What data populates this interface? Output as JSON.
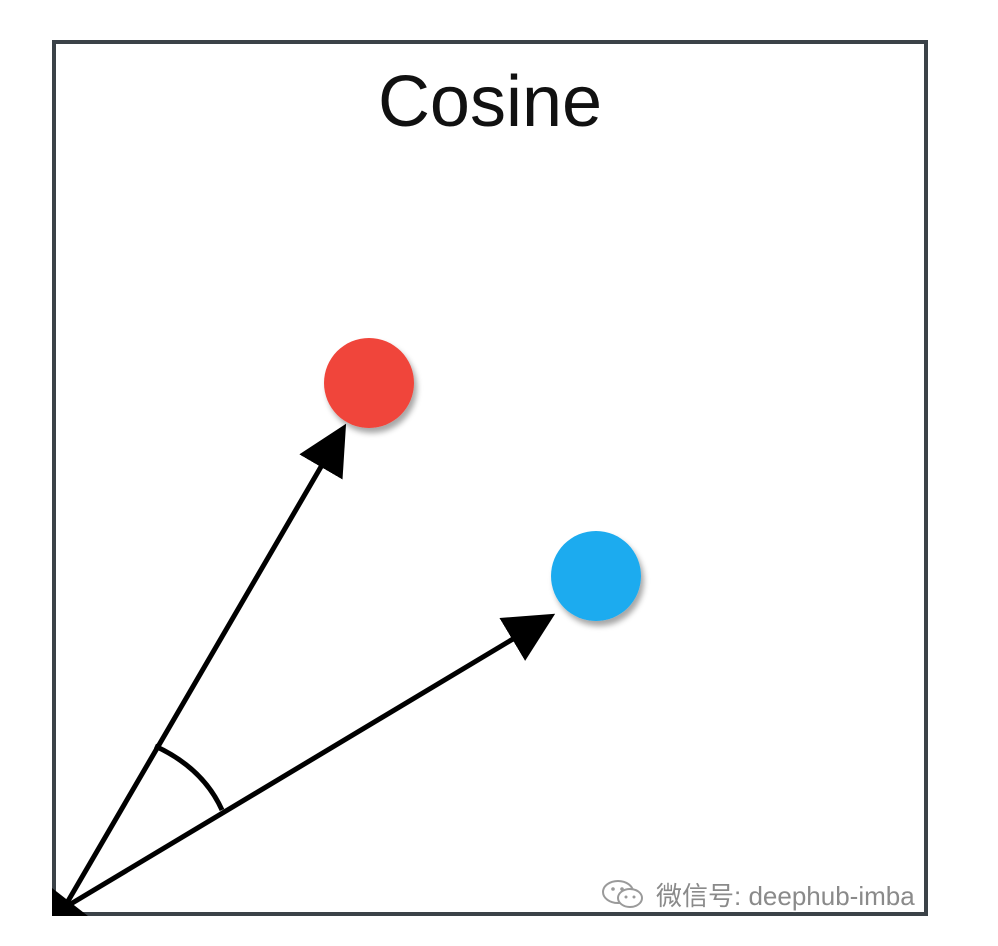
{
  "diagram": {
    "title": "Cosine",
    "vectors": [
      {
        "name": "red-vector",
        "target_color": "#f0453a"
      },
      {
        "name": "blue-vector",
        "target_color": "#1fabef"
      }
    ],
    "colors": {
      "frame": "#3b4248",
      "arrow": "#000000",
      "red_point": "#f0453a",
      "blue_point": "#1fabef"
    }
  },
  "watermark": {
    "icon": "wechat-icon",
    "text": "微信号: deephub-imba"
  }
}
